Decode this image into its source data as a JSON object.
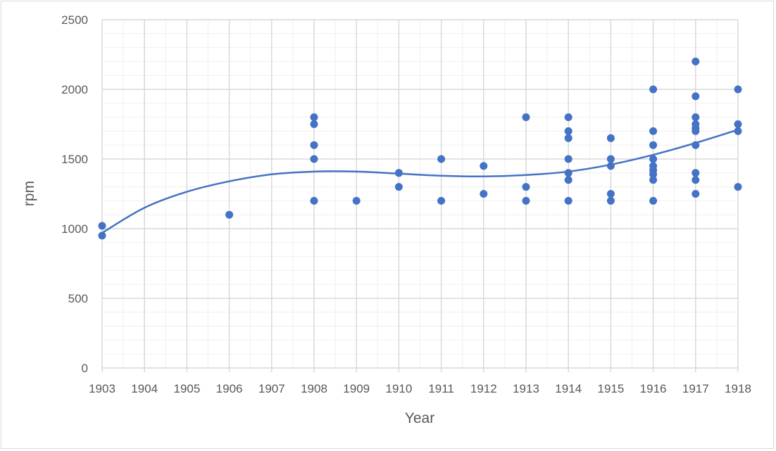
{
  "chart_data": {
    "type": "scatter",
    "title": "",
    "xlabel": "Year",
    "ylabel": "rpm",
    "xlim": [
      1903,
      1918
    ],
    "ylim": [
      0,
      2500
    ],
    "x_ticks": [
      "1903",
      "1904",
      "1905",
      "1906",
      "1907",
      "1908",
      "1909",
      "1910",
      "1911",
      "1912",
      "1913",
      "1914",
      "1915",
      "1916",
      "1917",
      "1918"
    ],
    "y_ticks": [
      "0",
      "500",
      "1000",
      "1500",
      "2000",
      "2500"
    ],
    "grid": {
      "major": true,
      "minor": true
    },
    "legend": "none",
    "colors": {
      "points": "#4472c4",
      "trendline": "#4472c4",
      "grid_major": "#d9d9d9",
      "grid_minor": "#efefef"
    },
    "points": [
      [
        1903,
        1020
      ],
      [
        1903,
        950
      ],
      [
        1906,
        1100
      ],
      [
        1908,
        1800
      ],
      [
        1908,
        1750
      ],
      [
        1908,
        1600
      ],
      [
        1908,
        1500
      ],
      [
        1908,
        1200
      ],
      [
        1909,
        1200
      ],
      [
        1910,
        1400
      ],
      [
        1910,
        1300
      ],
      [
        1911,
        1500
      ],
      [
        1911,
        1200
      ],
      [
        1912,
        1450
      ],
      [
        1912,
        1250
      ],
      [
        1913,
        1800
      ],
      [
        1913,
        1300
      ],
      [
        1913,
        1200
      ],
      [
        1914,
        1800
      ],
      [
        1914,
        1700
      ],
      [
        1914,
        1650
      ],
      [
        1914,
        1500
      ],
      [
        1914,
        1400
      ],
      [
        1914,
        1350
      ],
      [
        1914,
        1200
      ],
      [
        1915,
        1650
      ],
      [
        1915,
        1500
      ],
      [
        1915,
        1450
      ],
      [
        1915,
        1250
      ],
      [
        1915,
        1200
      ],
      [
        1916,
        2000
      ],
      [
        1916,
        1700
      ],
      [
        1916,
        1600
      ],
      [
        1916,
        1500
      ],
      [
        1916,
        1450
      ],
      [
        1916,
        1420
      ],
      [
        1916,
        1390
      ],
      [
        1916,
        1350
      ],
      [
        1916,
        1200
      ],
      [
        1917,
        2200
      ],
      [
        1917,
        1950
      ],
      [
        1917,
        1800
      ],
      [
        1917,
        1750
      ],
      [
        1917,
        1720
      ],
      [
        1917,
        1700
      ],
      [
        1917,
        1600
      ],
      [
        1917,
        1400
      ],
      [
        1917,
        1350
      ],
      [
        1917,
        1250
      ],
      [
        1918,
        2000
      ],
      [
        1918,
        1750
      ],
      [
        1918,
        1700
      ],
      [
        1918,
        1300
      ]
    ],
    "trendline": {
      "type": "polynomial",
      "points": [
        [
          1903,
          970
        ],
        [
          1904,
          1150
        ],
        [
          1905,
          1265
        ],
        [
          1906,
          1340
        ],
        [
          1907,
          1390
        ],
        [
          1908,
          1410
        ],
        [
          1909,
          1410
        ],
        [
          1910,
          1395
        ],
        [
          1911,
          1380
        ],
        [
          1912,
          1375
        ],
        [
          1913,
          1385
        ],
        [
          1914,
          1410
        ],
        [
          1915,
          1460
        ],
        [
          1916,
          1530
        ],
        [
          1917,
          1615
        ],
        [
          1918,
          1710
        ]
      ]
    }
  }
}
